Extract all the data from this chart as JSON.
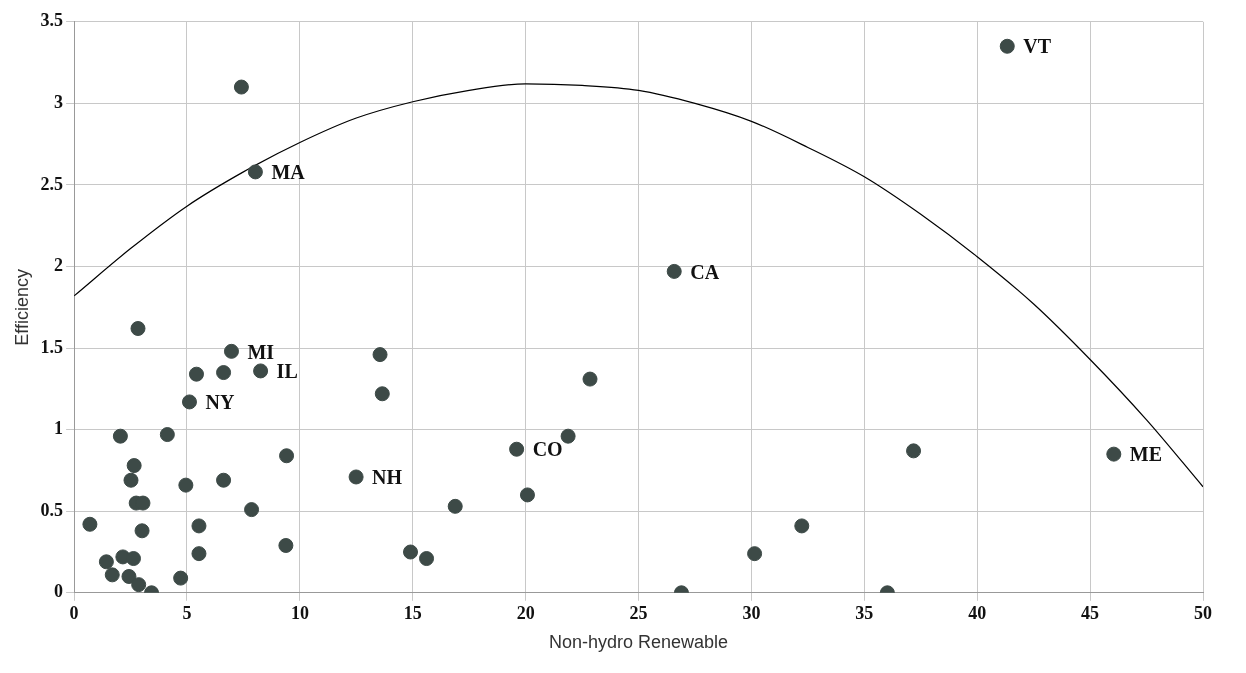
{
  "chart_data": {
    "type": "scatter",
    "xlabel": "Non-hydro Renewable",
    "ylabel": "Efficiency",
    "xlim": [
      0,
      50
    ],
    "ylim": [
      0,
      3.5
    ],
    "xticks": [
      0,
      5,
      10,
      15,
      20,
      25,
      30,
      35,
      40,
      45,
      50
    ],
    "yticks": [
      0,
      0.5,
      1,
      1.5,
      2,
      2.5,
      3,
      3.5
    ],
    "grid": true,
    "series": [
      {
        "marker": "circle",
        "color": "#3d4a47",
        "x": [
          0.7,
          1.43,
          1.69,
          2.16,
          2.43,
          2.63,
          2.86,
          3.43,
          2.83,
          2.05,
          2.66,
          2.52,
          2.75,
          3.05,
          3.01,
          4.13,
          4.72,
          4.95,
          5.11,
          5.42,
          5.53,
          5.53,
          6.62,
          6.62,
          6.97,
          7.41,
          7.86,
          8.03,
          8.26,
          9.38,
          9.41,
          12.49,
          13.55,
          13.65,
          14.9,
          15.61,
          16.88,
          19.6,
          20.08,
          21.88,
          22.85,
          26.58,
          26.9,
          30.14,
          32.23,
          36.02,
          37.18,
          41.33,
          46.05
        ],
        "values": [
          0.42,
          0.19,
          0.11,
          0.22,
          0.1,
          0.21,
          0.05,
          0,
          1.62,
          0.96,
          0.78,
          0.69,
          0.55,
          0.55,
          0.38,
          0.97,
          0.09,
          0.66,
          1.17,
          1.34,
          0.41,
          0.24,
          1.35,
          0.69,
          1.48,
          3.1,
          0.51,
          2.58,
          1.36,
          0.29,
          0.84,
          0.71,
          1.46,
          1.22,
          0.25,
          0.21,
          0.53,
          0.88,
          0.6,
          0.96,
          1.31,
          1.97,
          0,
          0.24,
          0.41,
          0,
          0.87,
          3.35,
          0.85
        ]
      },
      {
        "type": "line",
        "color": "#000000",
        "x": [
          0,
          2.5,
          5,
          7.5,
          10,
          12.5,
          15,
          17.5,
          20,
          22.5,
          25,
          27.5,
          30,
          32.5,
          35,
          37.5,
          40,
          42.5,
          45,
          47.5,
          50
        ],
        "values": [
          1.82,
          2.11,
          2.37,
          2.58,
          2.76,
          2.91,
          3.01,
          3.08,
          3.12,
          3.11,
          3.08,
          3,
          2.89,
          2.73,
          2.55,
          2.32,
          2.06,
          1.77,
          1.43,
          1.06,
          0.65
        ]
      }
    ],
    "annotations": [
      {
        "text": "VT",
        "x": 41.33,
        "y": 3.35
      },
      {
        "text": "MA",
        "x": 8.03,
        "y": 2.58
      },
      {
        "text": "CA",
        "x": 26.58,
        "y": 1.97
      },
      {
        "text": "MI",
        "x": 6.97,
        "y": 1.48
      },
      {
        "text": "IL",
        "x": 8.26,
        "y": 1.36
      },
      {
        "text": "NY",
        "x": 5.11,
        "y": 1.17
      },
      {
        "text": "NH",
        "x": 12.49,
        "y": 0.71
      },
      {
        "text": "CO",
        "x": 19.6,
        "y": 0.88
      },
      {
        "text": "ME",
        "x": 46.05,
        "y": 0.85
      }
    ]
  }
}
